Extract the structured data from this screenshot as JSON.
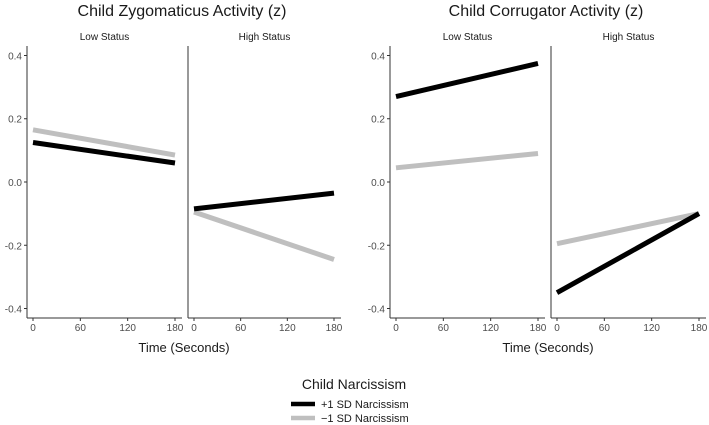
{
  "chart_data": [
    {
      "type": "line",
      "title": "Child Zygomaticus Activity (z)",
      "xlabel": "Time (Seconds)",
      "ylabel": "",
      "xlim": [
        0,
        180
      ],
      "ylim": [
        -0.43,
        0.43
      ],
      "xticks": [
        0,
        60,
        120,
        180
      ],
      "xtick_labels": [
        "0",
        "60",
        "120",
        "180"
      ],
      "yticks": [
        -0.4,
        -0.2,
        0.0,
        0.2,
        0.4
      ],
      "ytick_labels": [
        "-0.4",
        "-0.2",
        "0.0",
        "0.2",
        "0.4"
      ],
      "grid": false,
      "facets": [
        {
          "label": "Low Status",
          "series": [
            {
              "name": "+1 SD Narcissism",
              "color": "#000000",
              "x": [
                0,
                180
              ],
              "y": [
                0.125,
                0.06
              ]
            },
            {
              "name": "−1 SD Narcissism",
              "color": "#bfbfbf",
              "x": [
                0,
                180
              ],
              "y": [
                0.165,
                0.085
              ]
            }
          ]
        },
        {
          "label": "High Status",
          "series": [
            {
              "name": "+1 SD Narcissism",
              "color": "#000000",
              "x": [
                0,
                180
              ],
              "y": [
                -0.085,
                -0.035
              ]
            },
            {
              "name": "−1 SD Narcissism",
              "color": "#bfbfbf",
              "x": [
                0,
                180
              ],
              "y": [
                -0.095,
                -0.245
              ]
            }
          ]
        }
      ]
    },
    {
      "type": "line",
      "title": "Child Corrugator Activity (z)",
      "xlabel": "Time (Seconds)",
      "ylabel": "",
      "xlim": [
        0,
        180
      ],
      "ylim": [
        -0.43,
        0.43
      ],
      "xticks": [
        0,
        60,
        120,
        180
      ],
      "xtick_labels": [
        "0",
        "60",
        "120",
        "180"
      ],
      "yticks": [
        -0.4,
        -0.2,
        0.0,
        0.2,
        0.4
      ],
      "ytick_labels": [
        "-0.4",
        "-0.2",
        "0.0",
        "0.2",
        "0.4"
      ],
      "grid": false,
      "facets": [
        {
          "label": "Low Status",
          "series": [
            {
              "name": "+1 SD Narcissism",
              "color": "#000000",
              "x": [
                0,
                180
              ],
              "y": [
                0.27,
                0.375
              ]
            },
            {
              "name": "−1 SD Narcissism",
              "color": "#bfbfbf",
              "x": [
                0,
                180
              ],
              "y": [
                0.045,
                0.09
              ]
            }
          ]
        },
        {
          "label": "High Status",
          "series": [
            {
              "name": "+1 SD Narcissism",
              "color": "#000000",
              "x": [
                0,
                180
              ],
              "y": [
                -0.35,
                -0.1
              ]
            },
            {
              "name": "−1 SD Narcissism",
              "color": "#bfbfbf",
              "x": [
                0,
                180
              ],
              "y": [
                -0.195,
                -0.1
              ]
            }
          ]
        }
      ]
    }
  ],
  "legend": {
    "title": "Child Narcissism",
    "position": "bottom",
    "items": [
      {
        "label": "+1 SD Narcissism",
        "color": "#000000"
      },
      {
        "label": "−1 SD Narcissism",
        "color": "#bfbfbf"
      }
    ]
  }
}
